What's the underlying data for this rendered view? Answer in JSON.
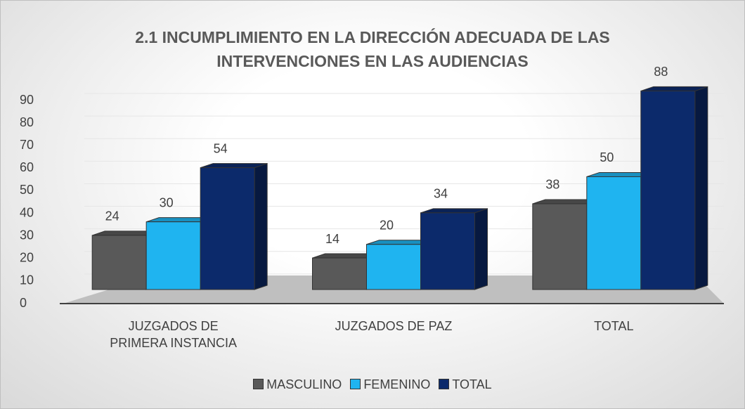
{
  "chart_data": {
    "type": "bar",
    "title": "2.1 INCUMPLIMIENTO EN LA DIRECCIÓN ADECUADA DE LAS INTERVENCIONES EN LAS AUDIENCIAS",
    "categories": [
      "JUZGADOS DE PRIMERA INSTANCIA",
      "JUZGADOS DE PAZ",
      "TOTAL"
    ],
    "series": [
      {
        "name": "MASCULINO",
        "color": "#595959",
        "values": [
          24,
          14,
          38
        ]
      },
      {
        "name": "FEMENINO",
        "color": "#1fb4f0",
        "values": [
          30,
          20,
          50
        ]
      },
      {
        "name": "TOTAL",
        "color": "#0c2a6b",
        "values": [
          54,
          34,
          88
        ]
      }
    ],
    "ylim": [
      0,
      90
    ],
    "yticks": [
      0,
      10,
      20,
      30,
      40,
      50,
      60,
      70,
      80,
      90
    ],
    "grid": true,
    "legend": "bottom"
  }
}
